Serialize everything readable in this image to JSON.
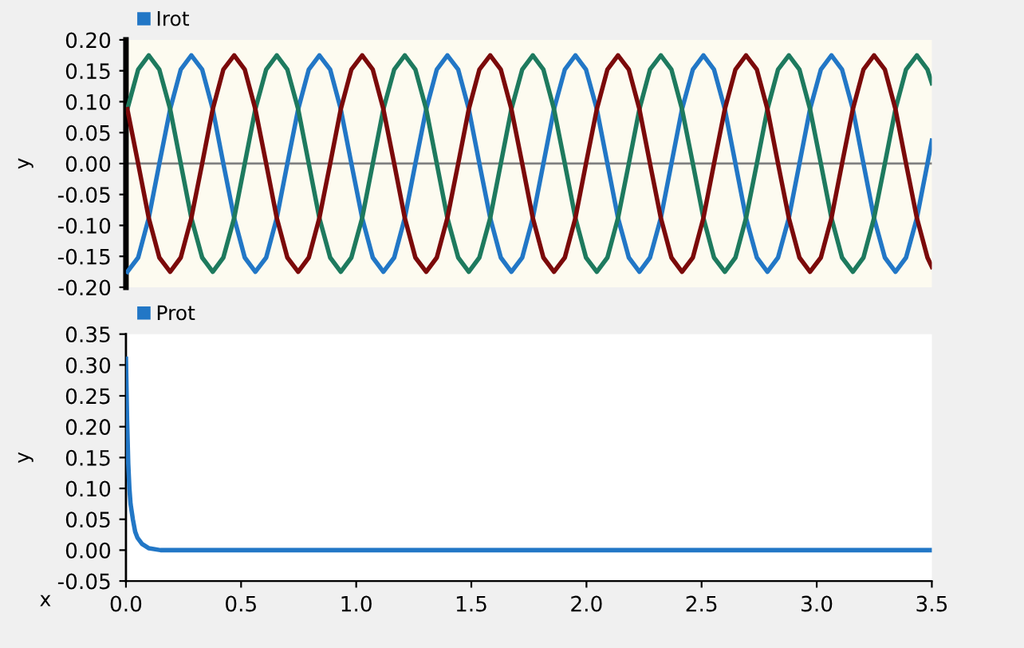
{
  "chart_data": [
    {
      "type": "line",
      "ylabel": "y",
      "legend": "top left",
      "tick_labels": "y",
      "grid": false,
      "xlim": [
        0,
        3.5
      ],
      "ylim": [
        -0.2,
        0.2
      ],
      "yticks": [
        {
          "value": 0.2,
          "label": "0.20"
        },
        {
          "value": 0.15,
          "label": "0.15"
        },
        {
          "value": 0.1,
          "label": "0.10"
        },
        {
          "value": 0.05,
          "label": "0.05"
        },
        {
          "value": 0,
          "label": "0.00"
        },
        {
          "value": -0.05,
          "label": "-0.05"
        },
        {
          "value": -0.1,
          "label": "-0.10"
        },
        {
          "value": -0.15,
          "label": "-0.15"
        },
        {
          "value": -0.2,
          "label": "-0.20"
        }
      ],
      "ref_lines": [
        {
          "axis": "y",
          "value": 0,
          "color": "#808080"
        }
      ],
      "x": [
        0.006,
        0.053,
        0.099,
        0.145,
        0.192,
        0.238,
        0.284,
        0.331,
        0.377,
        0.423,
        0.47,
        0.516,
        0.562,
        0.609,
        0.655,
        0.701,
        0.748,
        0.794,
        0.84,
        0.887,
        0.933,
        0.979,
        1.026,
        1.072,
        1.118,
        1.165,
        1.211,
        1.257,
        1.304,
        1.35,
        1.396,
        1.443,
        1.489,
        1.535,
        1.582,
        1.628,
        1.674,
        1.721,
        1.767,
        1.813,
        1.859,
        1.906,
        1.952,
        1.998,
        2.045,
        2.091,
        2.137,
        2.184,
        2.23,
        2.276,
        2.323,
        2.369,
        2.415,
        2.462,
        2.508,
        2.554,
        2.601,
        2.647,
        2.693,
        2.74,
        2.786,
        2.832,
        2.879,
        2.925,
        2.971,
        3.018,
        3.064,
        3.11,
        3.157,
        3.203,
        3.249,
        3.296,
        3.342,
        3.388,
        3.435,
        3.481,
        3.5
      ],
      "series": [
        {
          "name": "Irot",
          "color": "#2277c6",
          "values": [
            -0.175,
            -0.152,
            -0.088,
            0,
            0.088,
            0.152,
            0.175,
            0.152,
            0.088,
            0,
            -0.088,
            -0.152,
            -0.175,
            -0.152,
            -0.088,
            0,
            0.088,
            0.152,
            0.175,
            0.152,
            0.088,
            0,
            -0.088,
            -0.152,
            -0.175,
            -0.152,
            -0.088,
            0,
            0.088,
            0.152,
            0.175,
            0.152,
            0.088,
            0,
            -0.088,
            -0.152,
            -0.175,
            -0.152,
            -0.088,
            0,
            0.088,
            0.152,
            0.175,
            0.152,
            0.088,
            0,
            -0.088,
            -0.152,
            -0.175,
            -0.152,
            -0.088,
            0,
            0.088,
            0.152,
            0.175,
            0.152,
            0.088,
            0,
            -0.088,
            -0.152,
            -0.175,
            -0.152,
            -0.088,
            0,
            0.088,
            0.152,
            0.175,
            0.152,
            0.088,
            0,
            -0.088,
            -0.152,
            -0.175,
            -0.152,
            -0.088,
            0,
            0.037
          ]
        },
        {
          "color": "#1e7a5e",
          "values": [
            0.088,
            0.152,
            0.175,
            0.152,
            0.088,
            0,
            -0.088,
            -0.152,
            -0.175,
            -0.152,
            -0.088,
            0,
            0.088,
            0.152,
            0.175,
            0.152,
            0.088,
            0,
            -0.088,
            -0.152,
            -0.175,
            -0.152,
            -0.088,
            0,
            0.088,
            0.152,
            0.175,
            0.152,
            0.088,
            0,
            -0.088,
            -0.152,
            -0.175,
            -0.152,
            -0.088,
            0,
            0.088,
            0.152,
            0.175,
            0.152,
            0.088,
            0,
            -0.088,
            -0.152,
            -0.175,
            -0.152,
            -0.088,
            0,
            0.088,
            0.152,
            0.175,
            0.152,
            0.088,
            0,
            -0.088,
            -0.152,
            -0.175,
            -0.152,
            -0.088,
            0,
            0.088,
            0.152,
            0.175,
            0.152,
            0.088,
            0,
            -0.088,
            -0.152,
            -0.175,
            -0.152,
            -0.088,
            0,
            0.088,
            0.152,
            0.175,
            0.152,
            0.13
          ]
        },
        {
          "color": "#7b0a0a",
          "values": [
            0.088,
            0,
            -0.088,
            -0.152,
            -0.175,
            -0.152,
            -0.088,
            0,
            0.088,
            0.152,
            0.175,
            0.152,
            0.088,
            0,
            -0.088,
            -0.152,
            -0.175,
            -0.152,
            -0.088,
            0,
            0.088,
            0.152,
            0.175,
            0.152,
            0.088,
            0,
            -0.088,
            -0.152,
            -0.175,
            -0.152,
            -0.088,
            0,
            0.088,
            0.152,
            0.175,
            0.152,
            0.088,
            0,
            -0.088,
            -0.152,
            -0.175,
            -0.152,
            -0.088,
            0,
            0.088,
            0.152,
            0.175,
            0.152,
            0.088,
            0,
            -0.088,
            -0.152,
            -0.175,
            -0.152,
            -0.088,
            0,
            0.088,
            0.152,
            0.175,
            0.152,
            0.088,
            0,
            -0.088,
            -0.152,
            -0.175,
            -0.152,
            -0.088,
            0,
            0.088,
            0.152,
            0.175,
            0.152,
            0.088,
            0,
            -0.088,
            -0.152,
            -0.167
          ]
        }
      ]
    },
    {
      "type": "line",
      "xlabel": "x",
      "ylabel": "y",
      "legend": "top left",
      "grid": false,
      "xlim": [
        0,
        3.5
      ],
      "xticks": [
        {
          "value": 0,
          "label": "0.0"
        },
        {
          "value": 0.5,
          "label": "0.5"
        },
        {
          "value": 1,
          "label": "1.0"
        },
        {
          "value": 1.5,
          "label": "1.5"
        },
        {
          "value": 2,
          "label": "2.0"
        },
        {
          "value": 2.5,
          "label": "2.5"
        },
        {
          "value": 3,
          "label": "3.0"
        },
        {
          "value": 3.5,
          "label": "3.5"
        }
      ],
      "ylim": [
        -0.05,
        0.35
      ],
      "yticks": [
        {
          "value": 0.35,
          "label": "0.35"
        },
        {
          "value": 0.3,
          "label": "0.30"
        },
        {
          "value": 0.25,
          "label": "0.25"
        },
        {
          "value": 0.2,
          "label": "0.20"
        },
        {
          "value": 0.15,
          "label": "0.15"
        },
        {
          "value": 0.1,
          "label": "0.10"
        },
        {
          "value": 0.05,
          "label": "0.05"
        },
        {
          "value": 0,
          "label": "0.00"
        },
        {
          "value": -0.05,
          "label": "-0.05"
        }
      ],
      "x": [
        0,
        0.005,
        0.01,
        0.015,
        0.02,
        0.03,
        0.04,
        0.05,
        0.07,
        0.1,
        0.15,
        3.5
      ],
      "series": [
        {
          "name": "Prot",
          "color": "#2277c6",
          "values": [
            0.31,
            0.21,
            0.14,
            0.1,
            0.075,
            0.05,
            0.03,
            0.02,
            0.01,
            0.003,
            0,
            0
          ]
        }
      ]
    }
  ]
}
